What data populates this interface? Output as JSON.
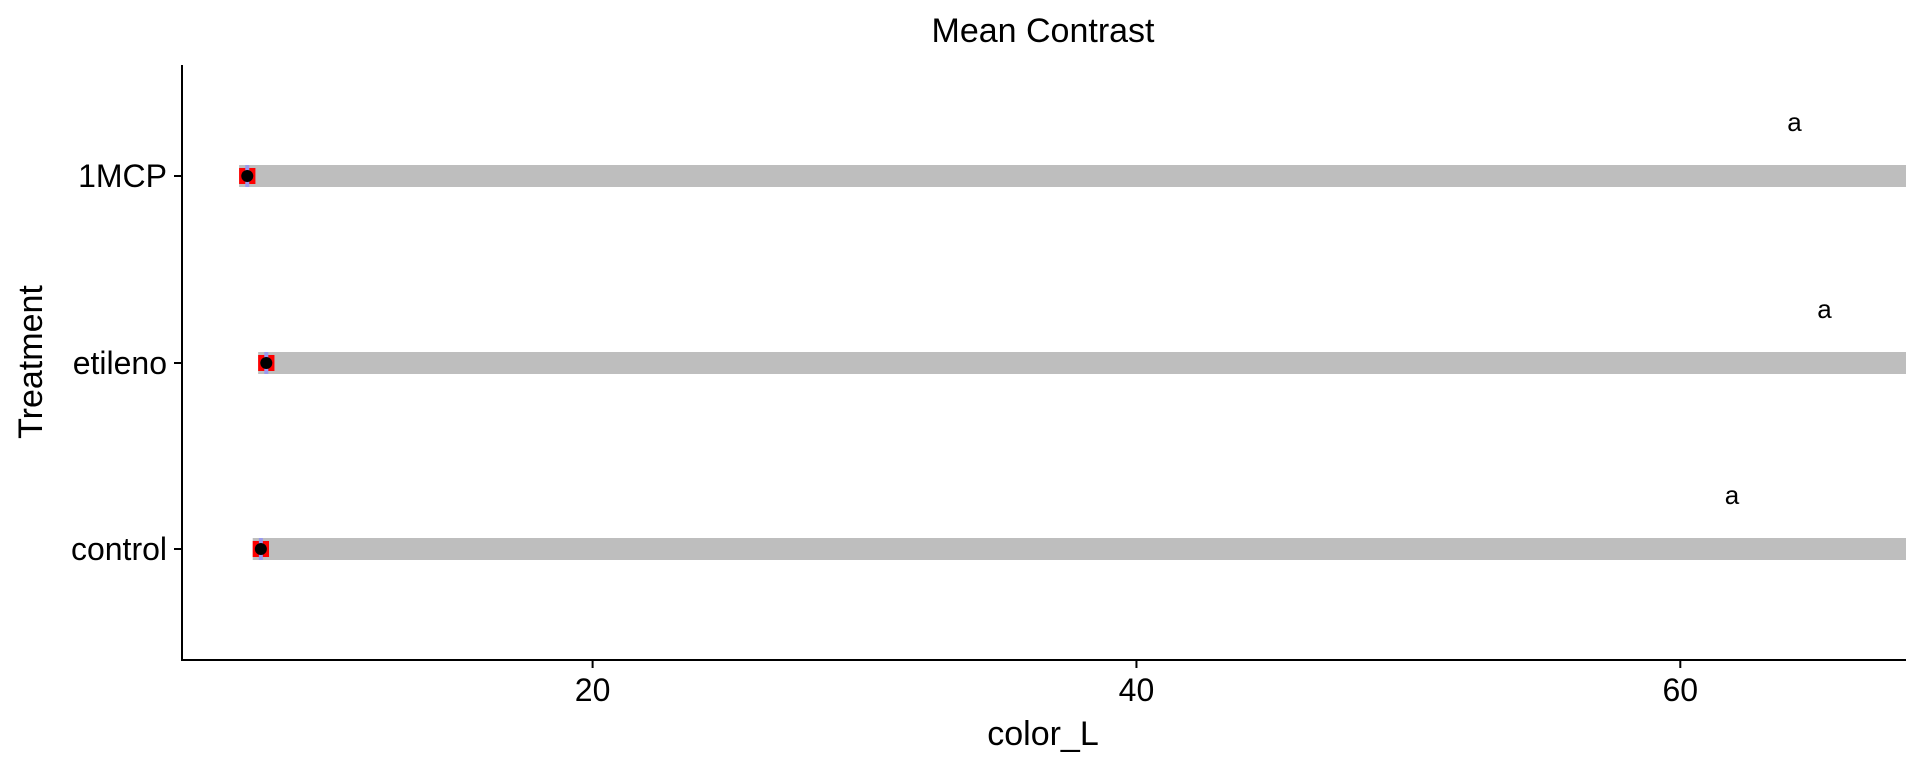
{
  "chart_data": {
    "type": "scatter",
    "title": "Mean Contrast",
    "xlabel": "color_L",
    "ylabel": "Treatment",
    "xlim": [
      4.9,
      68.3
    ],
    "xticks": [
      20,
      40,
      60
    ],
    "categories": [
      "control",
      "etileno",
      "1MCP"
    ],
    "means": [
      7.8,
      8.0,
      7.3
    ],
    "ci_lower": [
      7.5,
      7.7,
      7.0
    ],
    "ci_upper": [
      8.1,
      8.3,
      7.6
    ],
    "ci_band_upper": [
      68.3,
      68.3,
      68.3
    ],
    "group_letters": [
      "a",
      "a",
      "a"
    ],
    "letter_x": [
      61.9,
      65.3,
      64.2
    ],
    "grid": false,
    "colors": {
      "band": "#bebebe",
      "ci_marker": "#ff0000",
      "mean_point": "#000000",
      "mean_whisker": "#9999ee"
    }
  }
}
